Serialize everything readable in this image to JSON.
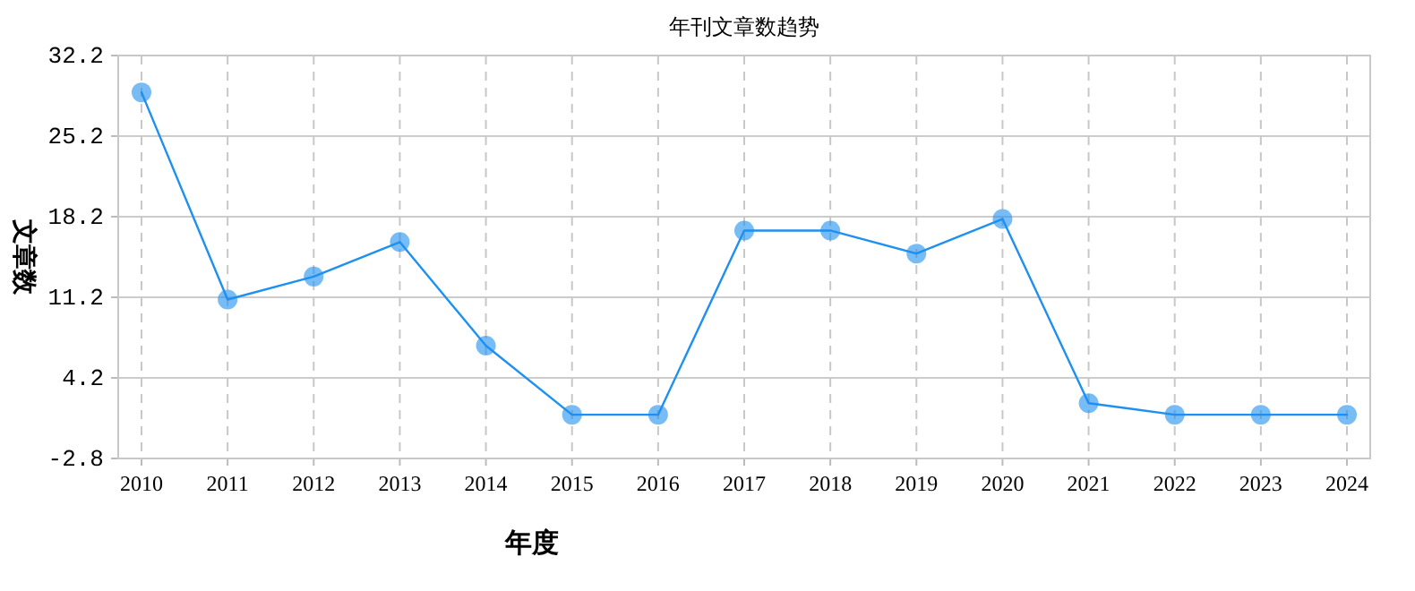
{
  "chart_data": {
    "type": "line",
    "title": "年刊文章数趋势",
    "xlabel": "年度",
    "ylabel": "文章数",
    "categories": [
      "2010",
      "2011",
      "2012",
      "2013",
      "2014",
      "2015",
      "2016",
      "2017",
      "2018",
      "2019",
      "2020",
      "2021",
      "2022",
      "2023",
      "2024"
    ],
    "series": [
      {
        "color": "#1e90f0",
        "values": [
          29,
          11,
          13,
          16,
          7,
          1,
          1,
          17,
          17,
          15,
          18,
          2,
          1,
          1,
          1
        ]
      }
    ],
    "ylim": [
      -2.8,
      32.2
    ],
    "yticks": [
      -2.8,
      4.2,
      11.2,
      18.2,
      25.2,
      32.2
    ],
    "grid": true,
    "marker": "circle",
    "line_style": "solid"
  }
}
